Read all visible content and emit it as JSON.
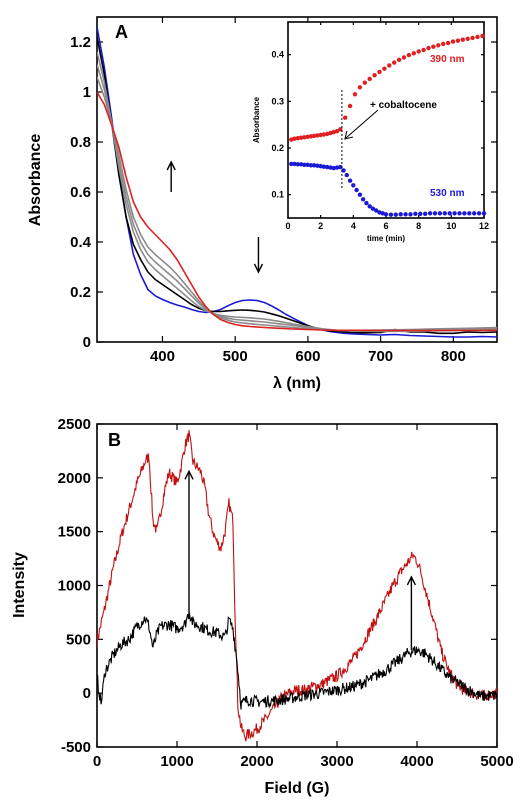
{
  "chart_data": [
    {
      "panel": "A",
      "type": "line",
      "xlabel": "λ (nm)",
      "ylabel": "Absorbance",
      "xlim": [
        310,
        860
      ],
      "ylim": [
        0,
        1.3
      ],
      "xticks": [
        400,
        500,
        600,
        700,
        800
      ],
      "yticks": [
        0,
        0.2,
        0.4,
        0.6,
        0.8,
        1,
        1.2
      ],
      "ytick_labels": [
        "0",
        "0.2",
        "0.4",
        "0.6",
        "0.8",
        "1",
        "1.2"
      ],
      "colors": {
        "red": "#e02020",
        "black": "#000000",
        "blue": "#1a1ad6",
        "gray": "#8a8a8a"
      },
      "series": [
        {
          "color": "#1a1ad6",
          "x": [
            310,
            320,
            330,
            340,
            350,
            360,
            370,
            380,
            390,
            400,
            410,
            420,
            430,
            440,
            450,
            460,
            470,
            480,
            490,
            500,
            510,
            520,
            530,
            540,
            550,
            560,
            570,
            580,
            590,
            600,
            610,
            620,
            630,
            640,
            650,
            660,
            680,
            700,
            720,
            740,
            760,
            780,
            800,
            820,
            840,
            860
          ],
          "y": [
            1.26,
            1.1,
            0.9,
            0.68,
            0.5,
            0.35,
            0.27,
            0.21,
            0.185,
            0.17,
            0.158,
            0.148,
            0.14,
            0.13,
            0.122,
            0.118,
            0.122,
            0.13,
            0.145,
            0.158,
            0.166,
            0.168,
            0.166,
            0.158,
            0.145,
            0.128,
            0.11,
            0.095,
            0.08,
            0.066,
            0.055,
            0.048,
            0.042,
            0.038,
            0.035,
            0.033,
            0.03,
            0.028,
            0.03,
            0.026,
            0.024,
            0.022,
            0.02,
            0.02,
            0.022,
            0.02
          ]
        },
        {
          "color": "#000000",
          "x": [
            310,
            320,
            330,
            340,
            350,
            360,
            370,
            380,
            390,
            400,
            410,
            420,
            430,
            440,
            450,
            460,
            470,
            480,
            490,
            500,
            510,
            520,
            530,
            540,
            550,
            560,
            570,
            580,
            590,
            600,
            610,
            620,
            630,
            640,
            650,
            660,
            680,
            700,
            720,
            740,
            760,
            780,
            800,
            820,
            840,
            860
          ],
          "y": [
            1.22,
            1.07,
            0.88,
            0.67,
            0.5,
            0.39,
            0.33,
            0.28,
            0.25,
            0.23,
            0.21,
            0.19,
            0.17,
            0.15,
            0.135,
            0.125,
            0.122,
            0.122,
            0.125,
            0.127,
            0.128,
            0.127,
            0.124,
            0.12,
            0.113,
            0.105,
            0.095,
            0.085,
            0.075,
            0.065,
            0.057,
            0.05,
            0.045,
            0.042,
            0.04,
            0.038,
            0.037,
            0.038,
            0.05,
            0.04,
            0.04,
            0.035,
            0.035,
            0.04,
            0.038,
            0.04
          ]
        },
        {
          "color": "#8a8a8a",
          "x": [
            310,
            320,
            330,
            340,
            350,
            360,
            370,
            380,
            390,
            400,
            410,
            420,
            430,
            440,
            450,
            460,
            470,
            480,
            490,
            500,
            520,
            540,
            560,
            580,
            600,
            620,
            640,
            660,
            700,
            740,
            780,
            820,
            860
          ],
          "y": [
            1.16,
            1.04,
            0.88,
            0.7,
            0.55,
            0.44,
            0.37,
            0.32,
            0.29,
            0.265,
            0.24,
            0.215,
            0.19,
            0.165,
            0.142,
            0.125,
            0.113,
            0.107,
            0.103,
            0.1,
            0.097,
            0.092,
            0.083,
            0.072,
            0.062,
            0.053,
            0.047,
            0.044,
            0.042,
            0.043,
            0.045,
            0.047,
            0.05
          ]
        },
        {
          "color": "#8a8a8a",
          "x": [
            310,
            320,
            330,
            340,
            350,
            360,
            370,
            380,
            390,
            400,
            410,
            420,
            430,
            440,
            450,
            460,
            470,
            480,
            490,
            500,
            520,
            540,
            560,
            580,
            600,
            620,
            640,
            660,
            700,
            740,
            780,
            820,
            860
          ],
          "y": [
            1.11,
            1.01,
            0.88,
            0.72,
            0.58,
            0.47,
            0.4,
            0.35,
            0.32,
            0.295,
            0.27,
            0.245,
            0.215,
            0.185,
            0.155,
            0.13,
            0.113,
            0.102,
            0.095,
            0.09,
            0.085,
            0.08,
            0.073,
            0.066,
            0.058,
            0.051,
            0.047,
            0.045,
            0.045,
            0.047,
            0.05,
            0.052,
            0.055
          ]
        },
        {
          "color": "#8a8a8a",
          "x": [
            310,
            320,
            330,
            340,
            350,
            360,
            370,
            380,
            390,
            400,
            410,
            420,
            430,
            440,
            450,
            460,
            470,
            480,
            490,
            500,
            520,
            540,
            560,
            580,
            600,
            620,
            640,
            660,
            700,
            740,
            780,
            820,
            860
          ],
          "y": [
            1.06,
            0.98,
            0.88,
            0.75,
            0.61,
            0.5,
            0.43,
            0.38,
            0.35,
            0.325,
            0.3,
            0.27,
            0.235,
            0.2,
            0.165,
            0.135,
            0.112,
            0.097,
            0.087,
            0.08,
            0.073,
            0.068,
            0.063,
            0.058,
            0.053,
            0.049,
            0.047,
            0.047,
            0.048,
            0.05,
            0.053,
            0.055,
            0.058
          ]
        },
        {
          "color": "#e02020",
          "x": [
            310,
            320,
            330,
            340,
            350,
            360,
            370,
            380,
            390,
            400,
            410,
            420,
            430,
            440,
            450,
            460,
            470,
            480,
            490,
            500,
            510,
            520,
            540,
            560,
            580,
            600,
            620,
            640,
            660,
            700,
            740,
            780,
            820,
            860
          ],
          "y": [
            1.0,
            0.95,
            0.87,
            0.78,
            0.66,
            0.56,
            0.5,
            0.46,
            0.43,
            0.4,
            0.37,
            0.33,
            0.28,
            0.23,
            0.18,
            0.14,
            0.11,
            0.09,
            0.078,
            0.07,
            0.065,
            0.062,
            0.058,
            0.055,
            0.052,
            0.05,
            0.048,
            0.047,
            0.047,
            0.046,
            0.046,
            0.046,
            0.046,
            0.047
          ]
        }
      ],
      "arrows": [
        {
          "x": 412,
          "from": 0.6,
          "to": 0.72,
          "direction": "up"
        },
        {
          "x": 532,
          "from": 0.42,
          "to": 0.28,
          "direction": "down"
        }
      ],
      "inset": {
        "xlabel": "time (min)",
        "ylabel": "Absorbance",
        "xlim": [
          0,
          12
        ],
        "ylim": [
          0.05,
          0.47
        ],
        "xticks": [
          0,
          2,
          4,
          6,
          8,
          10,
          12
        ],
        "yticks": [
          0.1,
          0.2,
          0.3,
          0.4
        ],
        "annotation": "+ cobaltocene",
        "event_time": 3.3,
        "series": [
          {
            "name": "390 nm",
            "color": "#e02020",
            "x": [
              0.2,
              0.4,
              0.6,
              0.8,
              1.0,
              1.2,
              1.4,
              1.6,
              1.8,
              2.0,
              2.2,
              2.4,
              2.6,
              2.8,
              3.0,
              3.2,
              3.5,
              3.8,
              4.1,
              4.4,
              4.7,
              5.0,
              5.3,
              5.6,
              5.9,
              6.2,
              6.5,
              6.8,
              7.1,
              7.4,
              7.7,
              8.0,
              8.3,
              8.6,
              8.9,
              9.2,
              9.5,
              9.8,
              10.1,
              10.4,
              10.7,
              11.0,
              11.3,
              11.6,
              11.9
            ],
            "y": [
              0.218,
              0.22,
              0.221,
              0.222,
              0.223,
              0.224,
              0.225,
              0.226,
              0.227,
              0.228,
              0.229,
              0.23,
              0.232,
              0.234,
              0.236,
              0.24,
              0.265,
              0.29,
              0.315,
              0.33,
              0.34,
              0.348,
              0.356,
              0.363,
              0.37,
              0.377,
              0.383,
              0.389,
              0.394,
              0.399,
              0.403,
              0.407,
              0.41,
              0.414,
              0.417,
              0.42,
              0.423,
              0.425,
              0.428,
              0.43,
              0.432,
              0.434,
              0.436,
              0.438,
              0.44
            ]
          },
          {
            "name": "530 nm",
            "color": "#1a1ad6",
            "x": [
              0.2,
              0.4,
              0.6,
              0.8,
              1.0,
              1.2,
              1.4,
              1.6,
              1.8,
              2.0,
              2.2,
              2.4,
              2.6,
              2.8,
              3.0,
              3.2,
              3.4,
              3.6,
              3.8,
              4.0,
              4.2,
              4.4,
              4.6,
              4.8,
              5.0,
              5.2,
              5.4,
              5.6,
              5.8,
              6.0,
              6.3,
              6.6,
              6.9,
              7.2,
              7.5,
              7.8,
              8.1,
              8.4,
              8.7,
              9.0,
              9.3,
              9.6,
              9.9,
              10.2,
              10.5,
              10.8,
              11.1,
              11.4,
              11.7,
              12.0
            ],
            "y": [
              0.166,
              0.166,
              0.165,
              0.165,
              0.164,
              0.164,
              0.163,
              0.163,
              0.162,
              0.161,
              0.16,
              0.159,
              0.158,
              0.157,
              0.158,
              0.159,
              0.152,
              0.142,
              0.13,
              0.12,
              0.11,
              0.1,
              0.09,
              0.082,
              0.075,
              0.07,
              0.066,
              0.062,
              0.06,
              0.058,
              0.057,
              0.057,
              0.058,
              0.058,
              0.058,
              0.059,
              0.059,
              0.059,
              0.06,
              0.06,
              0.06,
              0.06,
              0.06,
              0.06,
              0.06,
              0.06,
              0.06,
              0.06,
              0.06,
              0.06
            ]
          }
        ]
      }
    },
    {
      "panel": "B",
      "type": "line",
      "xlabel": "Field (G)",
      "ylabel": "Intensity",
      "xlim": [
        0,
        5000
      ],
      "ylim": [
        -500,
        2500
      ],
      "xticks": [
        0,
        1000,
        2000,
        3000,
        4000,
        5000
      ],
      "yticks": [
        -500,
        0,
        500,
        1000,
        1500,
        2000,
        2500
      ],
      "series": [
        {
          "color": "#c01010",
          "x": [
            0,
            100,
            200,
            300,
            400,
            500,
            600,
            650,
            700,
            750,
            800,
            850,
            900,
            950,
            1000,
            1050,
            1100,
            1150,
            1200,
            1250,
            1300,
            1350,
            1400,
            1450,
            1500,
            1550,
            1600,
            1650,
            1700,
            1720,
            1760,
            1800,
            1850,
            1900,
            1950,
            2000,
            2100,
            2200,
            2300,
            2400,
            2500,
            2600,
            2700,
            2800,
            2900,
            3000,
            3100,
            3200,
            3300,
            3400,
            3500,
            3600,
            3700,
            3800,
            3900,
            3950,
            4000,
            4050,
            4100,
            4200,
            4300,
            4400,
            4500,
            4600,
            4700,
            4800,
            4900,
            5000
          ],
          "y": [
            480,
            800,
            1150,
            1450,
            1700,
            1950,
            2150,
            2200,
            1600,
            1500,
            1700,
            1900,
            2050,
            2000,
            1950,
            2100,
            2300,
            2400,
            2150,
            2100,
            2050,
            1900,
            1650,
            1500,
            1400,
            1350,
            1500,
            1760,
            1600,
            900,
            -100,
            -320,
            -400,
            -380,
            -360,
            -330,
            -250,
            -150,
            -50,
            0,
            30,
            30,
            60,
            80,
            120,
            160,
            230,
            310,
            430,
            570,
            700,
            850,
            1000,
            1130,
            1230,
            1280,
            1230,
            1120,
            980,
            700,
            400,
            200,
            80,
            20,
            0,
            -30,
            -10,
            0
          ]
        },
        {
          "color": "#000000",
          "x": [
            0,
            50,
            100,
            200,
            300,
            400,
            500,
            600,
            650,
            700,
            750,
            800,
            900,
            1000,
            1100,
            1150,
            1200,
            1300,
            1400,
            1500,
            1600,
            1650,
            1700,
            1750,
            1800,
            1900,
            2000,
            2200,
            2400,
            2600,
            2800,
            3000,
            3200,
            3400,
            3600,
            3800,
            3900,
            4000,
            4100,
            4200,
            4400,
            4600,
            4800,
            5000
          ],
          "y": [
            150,
            -100,
            200,
            350,
            450,
            500,
            620,
            700,
            620,
            420,
            550,
            620,
            640,
            600,
            640,
            760,
            650,
            620,
            580,
            560,
            520,
            680,
            600,
            300,
            -100,
            -60,
            -80,
            -70,
            -50,
            -20,
            0,
            30,
            60,
            120,
            210,
            320,
            380,
            400,
            370,
            300,
            150,
            50,
            -30,
            -20
          ]
        }
      ],
      "arrows": [
        {
          "x": 1150,
          "from": 690,
          "to": 2060,
          "direction": "up"
        },
        {
          "x": 3930,
          "from": 400,
          "to": 1080,
          "direction": "up"
        }
      ]
    }
  ],
  "panels": {
    "a_letter": "A",
    "b_letter": "B"
  }
}
